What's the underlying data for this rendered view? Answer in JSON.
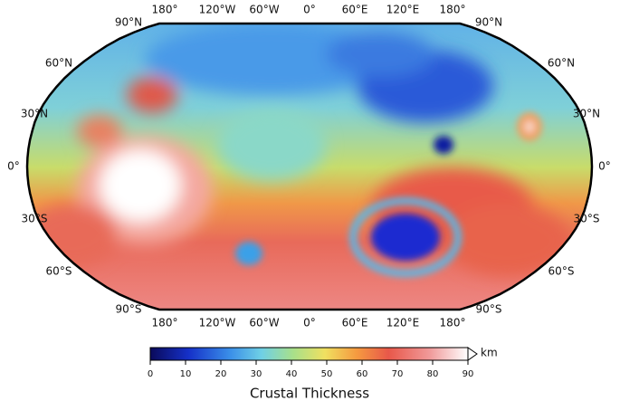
{
  "map": {
    "title": "Crustal Thickness",
    "longitude_labels": [
      "180°",
      "120°W",
      "60°W",
      "0°",
      "60°E",
      "120°E",
      "180°"
    ],
    "latitude_labels": [
      "90°N",
      "60°N",
      "30°N",
      "0°",
      "30°S",
      "60°S",
      "90°S"
    ]
  },
  "colorbar": {
    "unit": "km",
    "lim": [
      0,
      90
    ],
    "ticks": [
      0,
      10,
      20,
      30,
      40,
      50,
      60,
      70,
      80,
      90
    ]
  }
}
